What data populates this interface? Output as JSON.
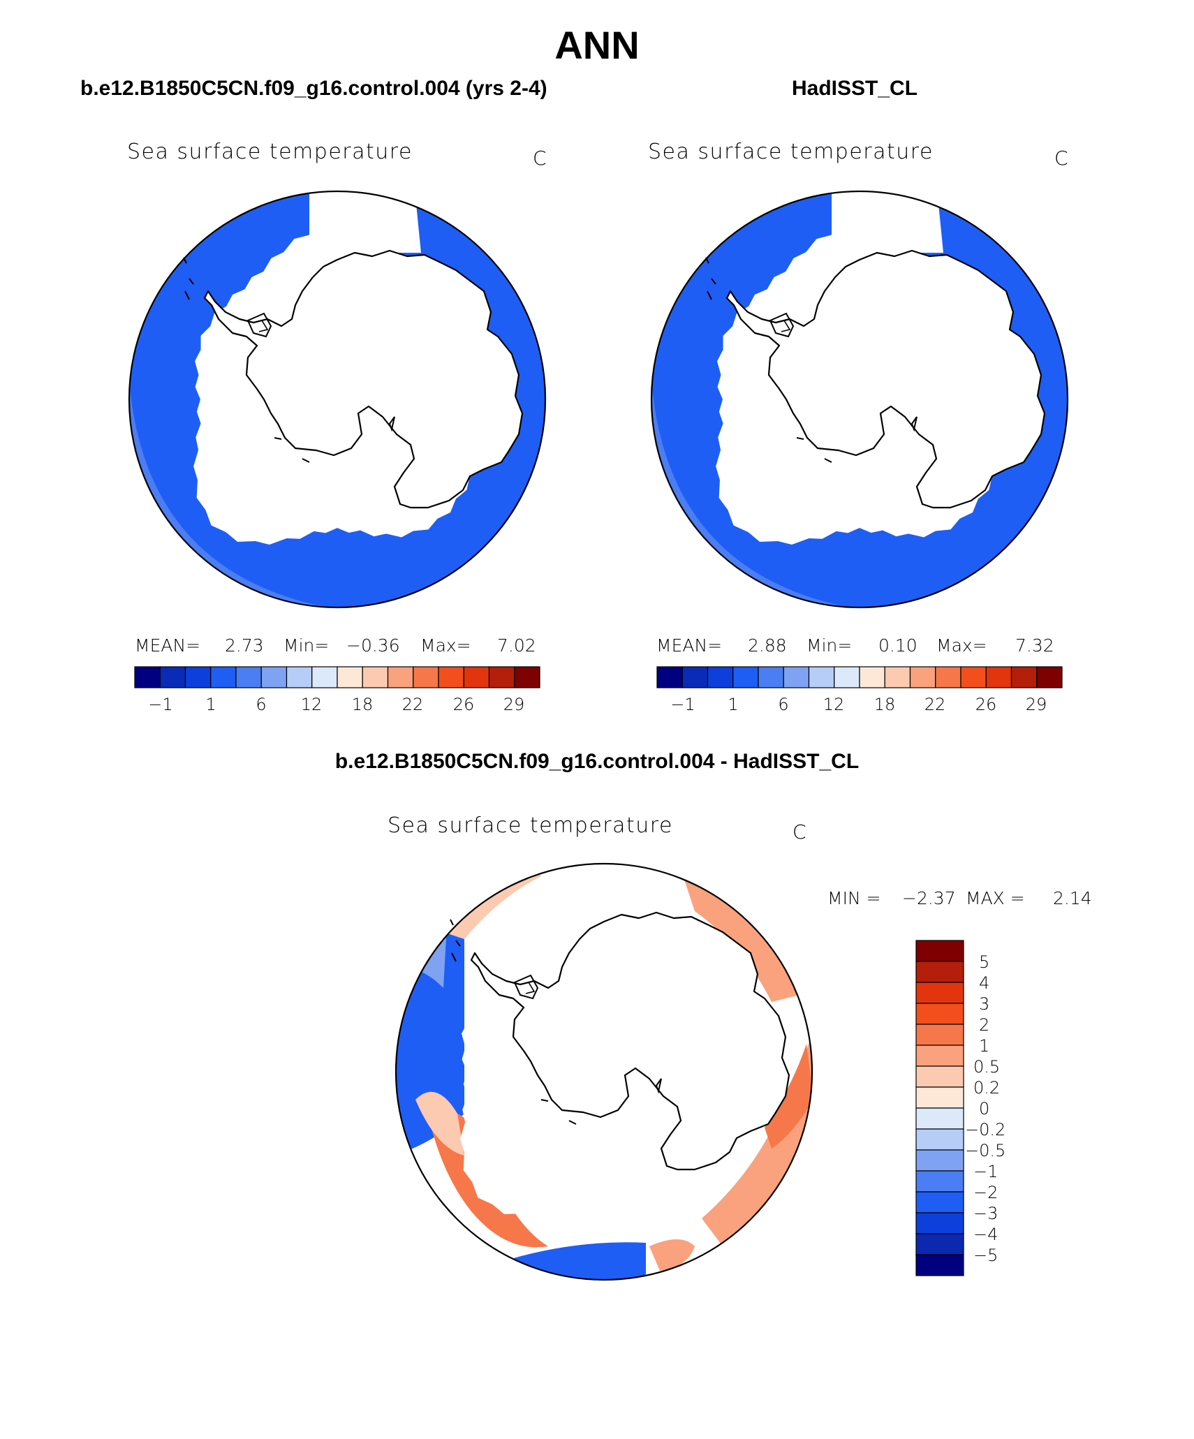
{
  "figure": {
    "title": "ANN",
    "panels": [
      {
        "title": "b.e12.B1850C5CN.f09_g16.control.004 (yrs 2-4)",
        "map_title": "Sea surface temperature",
        "units": "C",
        "stats": {
          "mean_label": "MEAN=",
          "mean": "2.73",
          "min_label": "Min=",
          "min": "−0.36",
          "max_label": "Max=",
          "max": "7.02"
        },
        "colorbar_ticks": [
          "−1",
          "1",
          "6",
          "12",
          "18",
          "22",
          "26",
          "29"
        ]
      },
      {
        "title": "HadISST_CL",
        "map_title": "Sea surface temperature",
        "units": "C",
        "stats": {
          "mean_label": "MEAN=",
          "mean": "2.88",
          "min_label": "Min=",
          "min": "0.10",
          "max_label": "Max=",
          "max": "7.32"
        },
        "colorbar_ticks": [
          "−1",
          "1",
          "6",
          "12",
          "18",
          "22",
          "26",
          "29"
        ]
      },
      {
        "title": "b.e12.B1850C5CN.f09_g16.control.004 - HadISST_CL",
        "map_title": "Sea surface temperature",
        "units": "C",
        "stats": {
          "min_label": "MIN =",
          "min": "−2.37",
          "max_label": "MAX =",
          "max": "2.14"
        },
        "colorbar_ticks": [
          "5",
          "4",
          "3",
          "2",
          "1",
          "0.5",
          "0.2",
          "0",
          "−0.2",
          "−0.5",
          "−1",
          "−2",
          "−3",
          "−4",
          "−5"
        ]
      }
    ]
  },
  "colors": {
    "abs_scale": [
      "#000080",
      "#0a2bb8",
      "#0d3fdc",
      "#1f5ef5",
      "#4b7ef2",
      "#7fa3f2",
      "#b6cdf8",
      "#dbe9fb",
      "#fde8d8",
      "#fccab0",
      "#f9a27d",
      "#f6774a",
      "#f24f1d",
      "#e2350e",
      "#b31f0a",
      "#7e0000"
    ],
    "diff_scale": [
      "#000080",
      "#0b28b0",
      "#0d3fdc",
      "#1f5ef5",
      "#4b7ef2",
      "#7fa3f2",
      "#b6cdf8",
      "#dbe9fb",
      "#fde8d8",
      "#fccab0",
      "#f9a27d",
      "#f6774a",
      "#f24f1d",
      "#e2350e",
      "#b31f0a",
      "#7e0000"
    ]
  }
}
